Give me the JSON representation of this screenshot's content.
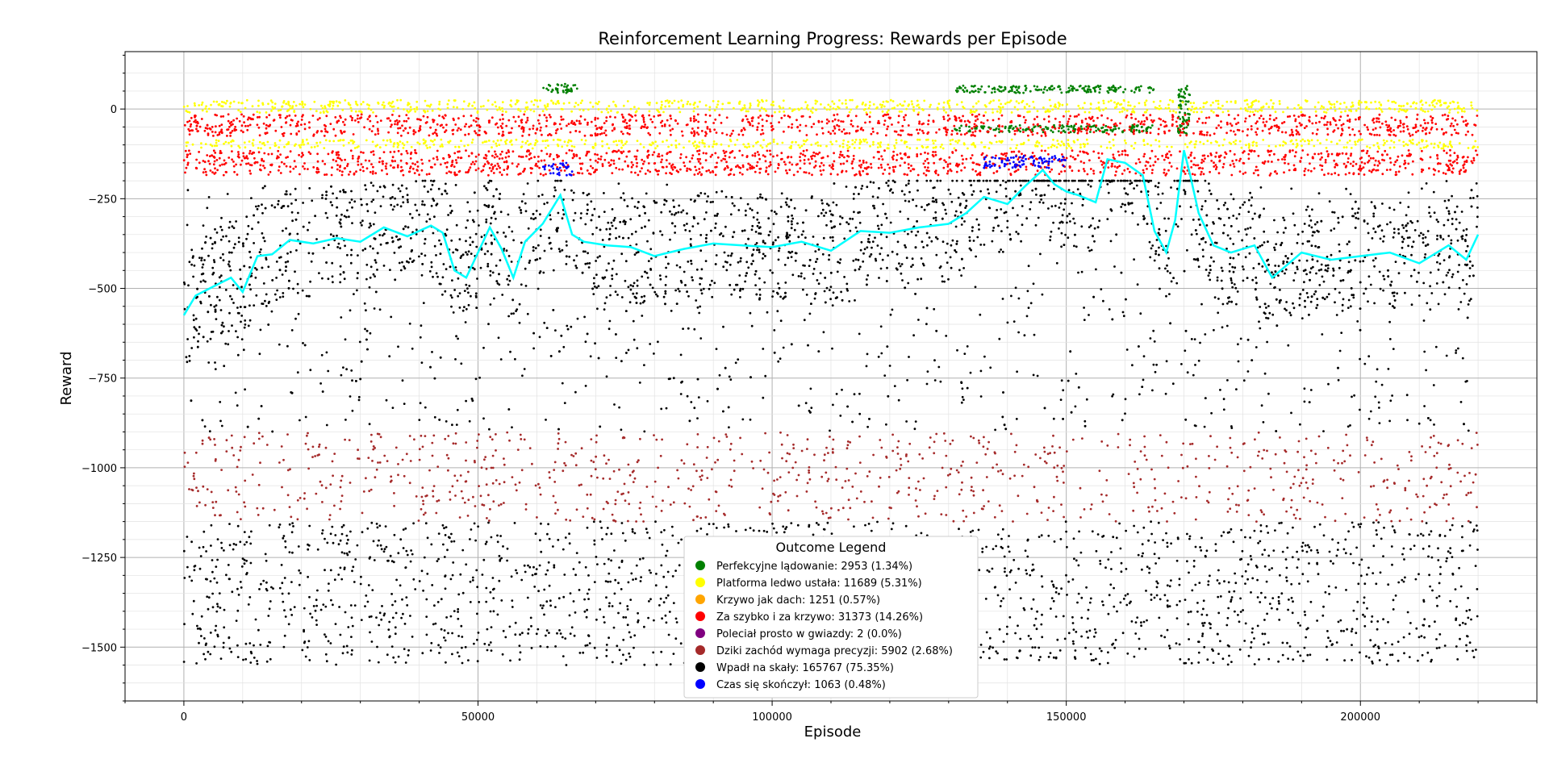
{
  "chart_data": {
    "type": "scatter",
    "title": "Reinforcement Learning Progress: Rewards per Episode",
    "xlabel": "Episode",
    "ylabel": "Reward",
    "xlim": [
      -10000,
      230000
    ],
    "ylim": [
      -1650,
      160
    ],
    "xticks": [
      0,
      50000,
      100000,
      150000,
      200000
    ],
    "yticks": [
      0,
      -250,
      -500,
      -750,
      -1000,
      -1250,
      -1500
    ],
    "grid": true,
    "legend": {
      "title": "Outcome Legend",
      "placement": "bottom-center",
      "entries": [
        {
          "label": "Perfekcyjne lądowanie: 2953 (1.34%)",
          "color": "#008000"
        },
        {
          "label": "Platforma ledwo ustała: 11689 (5.31%)",
          "color": "#ffff00"
        },
        {
          "label": "Krzywo jak dach: 1251 (0.57%)",
          "color": "#ffa500"
        },
        {
          "label": "Za szybko i za krzywo: 31373 (14.26%)",
          "color": "#ff0000"
        },
        {
          "label": "Poleciał prosto w gwiazdy: 2 (0.0%)",
          "color": "#800080"
        },
        {
          "label": "Dziki zachód wymaga precyzji: 5902 (2.68%)",
          "color": "#a52a2a"
        },
        {
          "label": "Wpadł na skały: 165767 (75.35%)",
          "color": "#000000"
        },
        {
          "label": "Czas się skończył: 1063 (0.48%)",
          "color": "#0000ff"
        }
      ]
    },
    "series": [
      {
        "outcome": "green",
        "color": "#008000",
        "bands": [
          {
            "x": [
              61000,
              67000
            ],
            "y": [
              45,
              70
            ]
          },
          {
            "x": [
              131000,
              165000
            ],
            "y": [
              45,
              65
            ]
          },
          {
            "x": [
              131000,
              165000
            ],
            "y": [
              -65,
              -45
            ]
          },
          {
            "x": [
              169000,
              171000
            ],
            "y": [
              -70,
              70
            ]
          }
        ]
      },
      {
        "outcome": "yellow",
        "color": "#ffff00",
        "bands": [
          {
            "x": [
              0,
              220000
            ],
            "y": [
              -10,
              25
            ]
          },
          {
            "x": [
              0,
              220000
            ],
            "y": [
              -110,
              -85
            ]
          }
        ]
      },
      {
        "outcome": "red",
        "color": "#ff0000",
        "bands": [
          {
            "x": [
              0,
              220000
            ],
            "y": [
              -75,
              -15
            ]
          },
          {
            "x": [
              0,
              220000
            ],
            "y": [
              -185,
              -115
            ]
          }
        ]
      },
      {
        "outcome": "blue",
        "color": "#0000ff",
        "bands": [
          {
            "x": [
              61000,
              66000
            ],
            "y": [
              -185,
              -150
            ]
          },
          {
            "x": [
              136000,
              150000
            ],
            "y": [
              -165,
              -130
            ]
          }
        ]
      },
      {
        "outcome": "brown",
        "color": "#a52a2a",
        "bands": [
          {
            "x": [
              0,
              220000
            ],
            "y": [
              -1150,
              -900
            ]
          }
        ]
      },
      {
        "outcome": "black",
        "color": "#000000",
        "bands": [
          {
            "x": [
              0,
              220000
            ],
            "y": [
              -900,
              -200
            ]
          },
          {
            "x": [
              0,
              220000
            ],
            "y": [
              -1550,
              -1150
            ]
          }
        ]
      }
    ],
    "moving_average": {
      "color": "#00ffff",
      "x": [
        0,
        2000,
        5000,
        8000,
        10000,
        12500,
        15000,
        18000,
        22000,
        26000,
        30000,
        34000,
        38000,
        42000,
        44000,
        46000,
        48000,
        50000,
        52000,
        54000,
        56000,
        58000,
        61000,
        64000,
        66000,
        68000,
        72000,
        76000,
        80000,
        85000,
        90000,
        95000,
        100000,
        105000,
        110000,
        115000,
        120000,
        125000,
        130000,
        133000,
        136000,
        140000,
        143000,
        146000,
        148000,
        150000,
        152000,
        155000,
        157000,
        160000,
        163000,
        165000,
        167000,
        168500,
        170000,
        171000,
        172500,
        175000,
        178000,
        182000,
        185000,
        190000,
        195000,
        200000,
        205000,
        210000,
        215000,
        218000,
        220000
      ],
      "y": [
        -575,
        -520,
        -495,
        -470,
        -510,
        -410,
        -405,
        -365,
        -375,
        -360,
        -370,
        -330,
        -355,
        -325,
        -345,
        -450,
        -470,
        -400,
        -330,
        -390,
        -470,
        -370,
        -320,
        -240,
        -350,
        -370,
        -380,
        -385,
        -410,
        -390,
        -375,
        -380,
        -385,
        -370,
        -395,
        -340,
        -345,
        -330,
        -320,
        -290,
        -245,
        -265,
        -215,
        -170,
        -210,
        -230,
        -240,
        -260,
        -140,
        -150,
        -185,
        -340,
        -400,
        -310,
        -115,
        -180,
        -290,
        -380,
        -400,
        -380,
        -470,
        -400,
        -420,
        -410,
        -400,
        -430,
        -380,
        -420,
        -350
      ]
    }
  }
}
